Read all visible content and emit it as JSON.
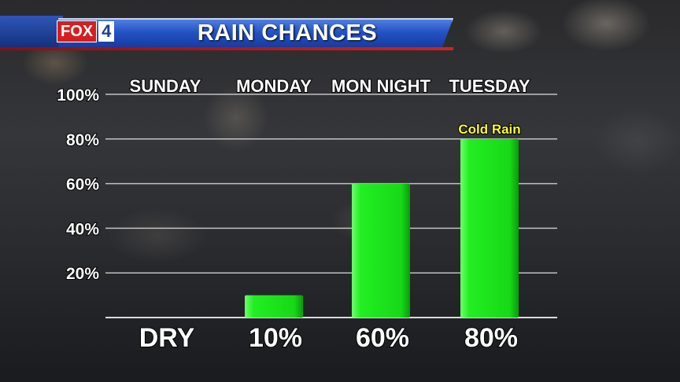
{
  "header": {
    "logo_fox": "FOX",
    "logo_number": "4",
    "title": "RAIN CHANCES"
  },
  "colors": {
    "bar": "#22ee22",
    "bar_dark": "#0a9a0a",
    "annotation": "#ffff33",
    "header_blue": "#2452c4"
  },
  "chart_data": {
    "type": "bar",
    "title": "RAIN CHANCES",
    "categories": [
      "Sunday",
      "Monday",
      "Mon Night",
      "Tuesday"
    ],
    "values": [
      0,
      10,
      60,
      80
    ],
    "value_labels": [
      "DRY",
      "10%",
      "60%",
      "80%"
    ],
    "annotations": [
      {
        "category": "Tuesday",
        "text": "Cold Rain"
      }
    ],
    "yticks": [
      "20%",
      "40%",
      "60%",
      "80%",
      "100%"
    ],
    "ytick_values": [
      20,
      40,
      60,
      80,
      100
    ],
    "ylim": [
      0,
      100
    ],
    "grid": true,
    "xlabel": "",
    "ylabel": ""
  }
}
